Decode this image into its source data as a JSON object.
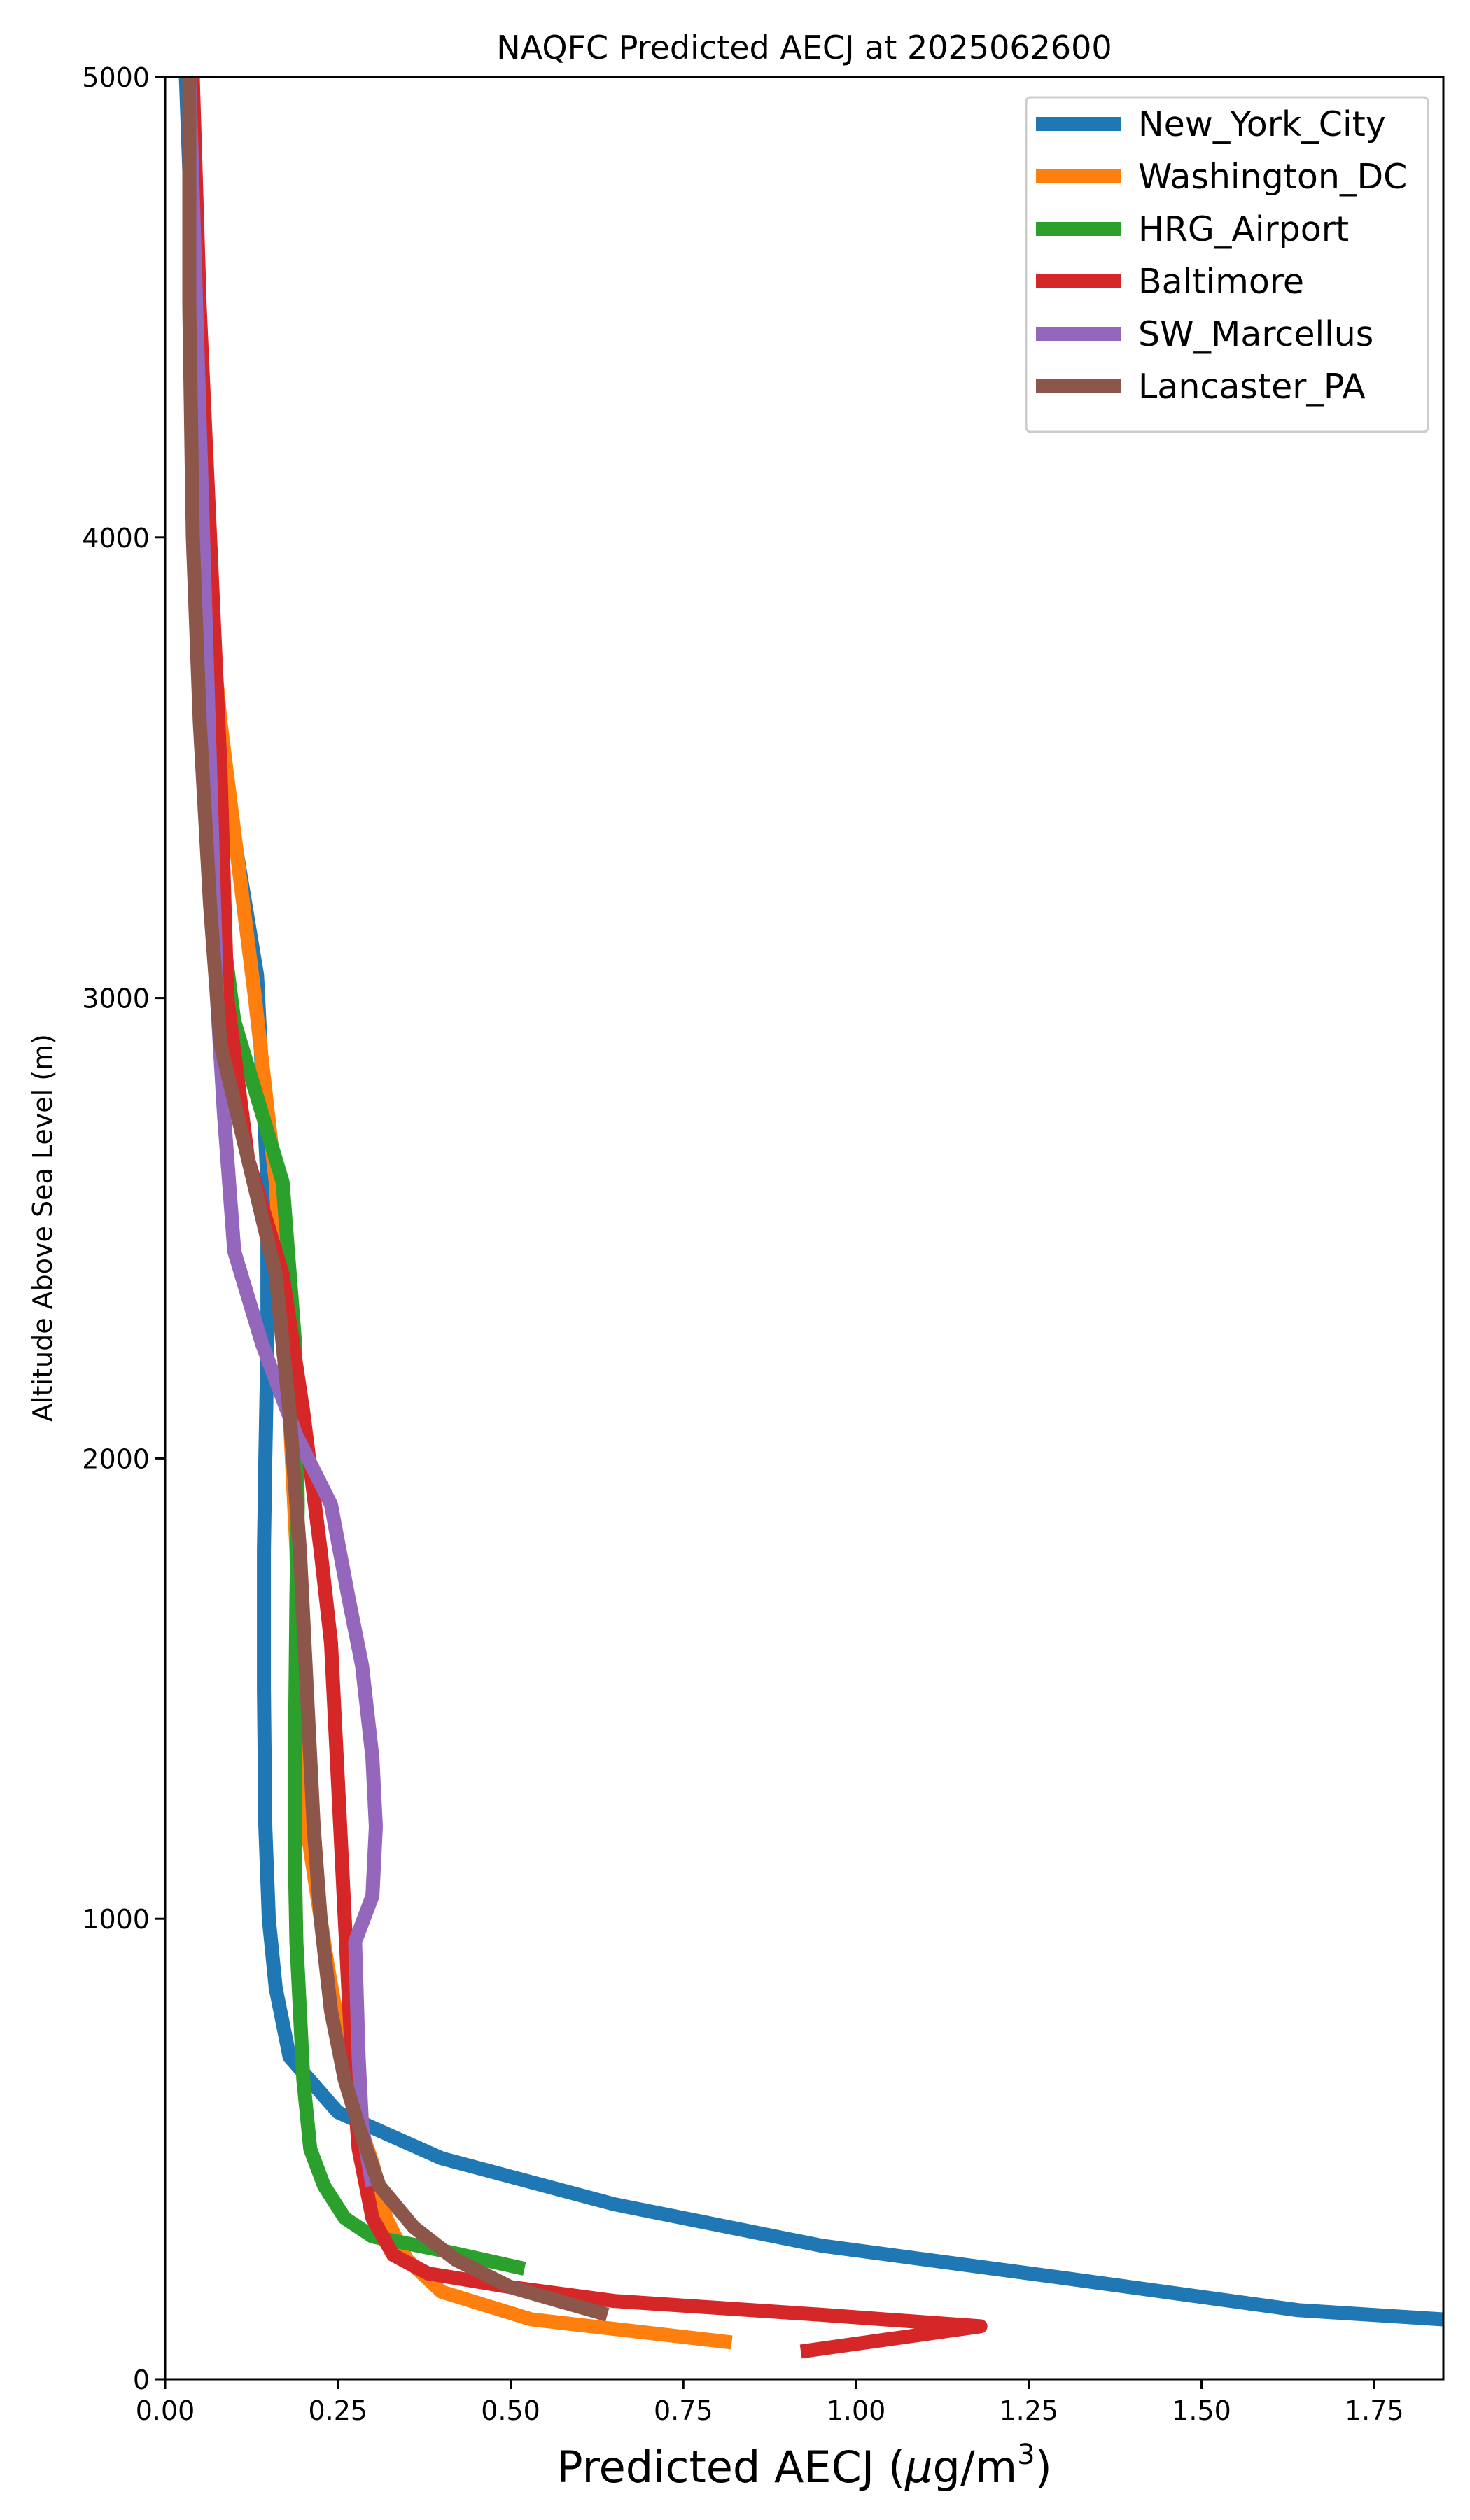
{
  "chart_data": {
    "type": "line",
    "title": "NAQFC Predicted AECJ at 2025062600",
    "xlabel": "Predicted AECJ (μg/m³)",
    "xlabel_parts": {
      "main": "Predicted AECJ (",
      "mu": "μ",
      "unit": "g/m",
      "sup": "3",
      "close": ")"
    },
    "ylabel": "Altitude Above Sea Level (m)",
    "xlim": [
      0,
      1.85
    ],
    "ylim": [
      0,
      5000
    ],
    "xticks": [
      0.0,
      0.25,
      0.5,
      0.75,
      1.0,
      1.25,
      1.5,
      1.75
    ],
    "xtick_labels": [
      "0.00",
      "0.25",
      "0.50",
      "0.75",
      "1.00",
      "1.25",
      "1.50",
      "1.75"
    ],
    "yticks": [
      0,
      1000,
      2000,
      3000,
      4000,
      5000
    ],
    "ytick_labels": [
      "0",
      "1000",
      "2000",
      "3000",
      "4000",
      "5000"
    ],
    "grid": false,
    "legend_position": "top-right",
    "series": [
      {
        "name": "New_York_City",
        "color": "#1f77b4",
        "points": [
          [
            1.85,
            130
          ],
          [
            1.64,
            150
          ],
          [
            1.3,
            220
          ],
          [
            0.95,
            290
          ],
          [
            0.65,
            380
          ],
          [
            0.4,
            480
          ],
          [
            0.25,
            580
          ],
          [
            0.18,
            700
          ],
          [
            0.16,
            850
          ],
          [
            0.15,
            1000
          ],
          [
            0.145,
            1200
          ],
          [
            0.143,
            1500
          ],
          [
            0.143,
            1800
          ],
          [
            0.145,
            2000
          ],
          [
            0.148,
            2250
          ],
          [
            0.148,
            2600
          ],
          [
            0.133,
            3050
          ],
          [
            0.1,
            3350
          ],
          [
            0.065,
            3650
          ],
          [
            0.05,
            4000
          ],
          [
            0.042,
            4500
          ],
          [
            0.03,
            5000
          ]
        ]
      },
      {
        "name": "Washington_DC",
        "color": "#ff7f0e",
        "points": [
          [
            0.82,
            80
          ],
          [
            0.53,
            130
          ],
          [
            0.4,
            190
          ],
          [
            0.35,
            260
          ],
          [
            0.32,
            350
          ],
          [
            0.3,
            470
          ],
          [
            0.27,
            600
          ],
          [
            0.235,
            900
          ],
          [
            0.205,
            1200
          ],
          [
            0.195,
            1500
          ],
          [
            0.19,
            1800
          ],
          [
            0.18,
            2100
          ],
          [
            0.17,
            2350
          ],
          [
            0.16,
            2600
          ],
          [
            0.13,
            3000
          ],
          [
            0.08,
            3600
          ],
          [
            0.055,
            4000
          ],
          [
            0.04,
            4500
          ],
          [
            0.035,
            5000
          ]
        ]
      },
      {
        "name": "HRG_Airport",
        "color": "#2ca02c",
        "points": [
          [
            0.52,
            240
          ],
          [
            0.4,
            280
          ],
          [
            0.3,
            310
          ],
          [
            0.26,
            350
          ],
          [
            0.23,
            420
          ],
          [
            0.21,
            500
          ],
          [
            0.2,
            650
          ],
          [
            0.195,
            800
          ],
          [
            0.19,
            950
          ],
          [
            0.188,
            1100
          ],
          [
            0.188,
            1400
          ],
          [
            0.19,
            1700
          ],
          [
            0.192,
            1900
          ],
          [
            0.188,
            2250
          ],
          [
            0.17,
            2600
          ],
          [
            0.1,
            2950
          ],
          [
            0.07,
            3300
          ],
          [
            0.045,
            4000
          ],
          [
            0.038,
            4500
          ],
          [
            0.035,
            5000
          ]
        ]
      },
      {
        "name": "Baltimore",
        "color": "#d62728",
        "points": [
          [
            0.92,
            60
          ],
          [
            1.18,
            115
          ],
          [
            0.95,
            140
          ],
          [
            0.65,
            170
          ],
          [
            0.5,
            200
          ],
          [
            0.38,
            230
          ],
          [
            0.33,
            270
          ],
          [
            0.3,
            350
          ],
          [
            0.28,
            500
          ],
          [
            0.27,
            700
          ],
          [
            0.26,
            1000
          ],
          [
            0.25,
            1300
          ],
          [
            0.24,
            1600
          ],
          [
            0.225,
            1800
          ],
          [
            0.2,
            2100
          ],
          [
            0.17,
            2400
          ],
          [
            0.12,
            2650
          ],
          [
            0.09,
            3000
          ],
          [
            0.08,
            3500
          ],
          [
            0.065,
            4000
          ],
          [
            0.05,
            4500
          ],
          [
            0.04,
            5000
          ]
        ]
      },
      {
        "name": "SW_Marcellus",
        "color": "#9467bd",
        "points": [
          [
            0.3,
            420
          ],
          [
            0.285,
            550
          ],
          [
            0.28,
            700
          ],
          [
            0.275,
            950
          ],
          [
            0.3,
            1050
          ],
          [
            0.305,
            1200
          ],
          [
            0.3,
            1350
          ],
          [
            0.285,
            1550
          ],
          [
            0.265,
            1700
          ],
          [
            0.24,
            1900
          ],
          [
            0.19,
            2050
          ],
          [
            0.14,
            2250
          ],
          [
            0.1,
            2450
          ],
          [
            0.085,
            2750
          ],
          [
            0.075,
            3000
          ],
          [
            0.065,
            3500
          ],
          [
            0.055,
            4000
          ],
          [
            0.045,
            4500
          ],
          [
            0.035,
            5000
          ]
        ]
      },
      {
        "name": "Lancaster_PA",
        "color": "#8c564b",
        "points": [
          [
            0.64,
            140
          ],
          [
            0.5,
            200
          ],
          [
            0.42,
            260
          ],
          [
            0.36,
            330
          ],
          [
            0.31,
            420
          ],
          [
            0.28,
            550
          ],
          [
            0.26,
            650
          ],
          [
            0.24,
            800
          ],
          [
            0.225,
            1000
          ],
          [
            0.215,
            1200
          ],
          [
            0.205,
            1500
          ],
          [
            0.195,
            1800
          ],
          [
            0.18,
            2100
          ],
          [
            0.16,
            2400
          ],
          [
            0.12,
            2650
          ],
          [
            0.08,
            2900
          ],
          [
            0.065,
            3200
          ],
          [
            0.05,
            3600
          ],
          [
            0.04,
            4000
          ],
          [
            0.035,
            4500
          ],
          [
            0.035,
            5000
          ]
        ]
      }
    ]
  }
}
